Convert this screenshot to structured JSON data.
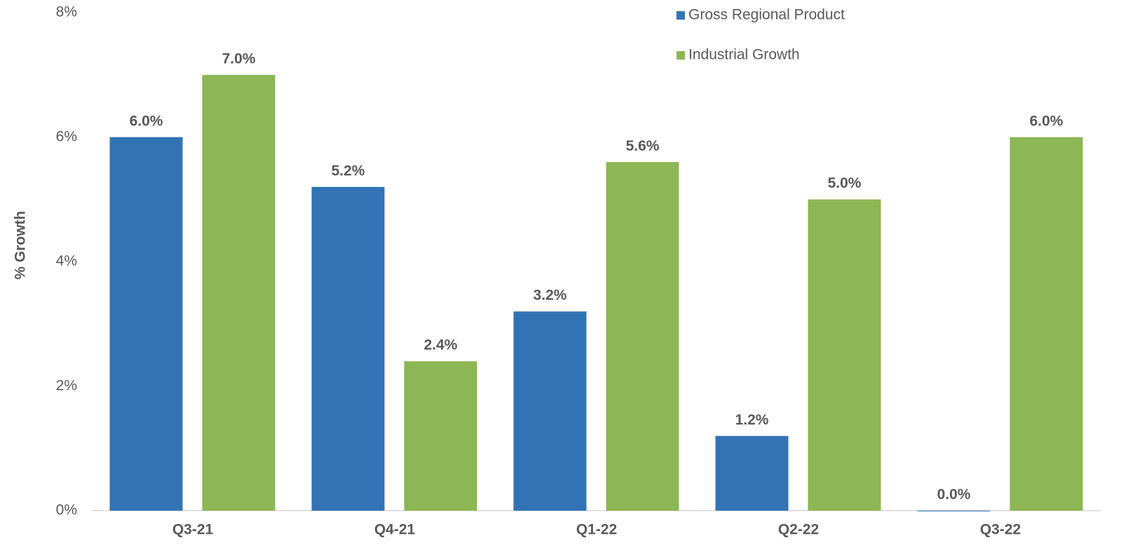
{
  "chart_data": {
    "type": "bar",
    "y_label": "% Growth",
    "categories": [
      "Q3-21",
      "Q4-21",
      "Q1-22",
      "Q2-22",
      "Q3-22"
    ],
    "series": [
      {
        "name": "Gross Regional Product",
        "color": "#3273b5",
        "values": [
          6.0,
          5.2,
          3.2,
          1.2,
          0.0
        ],
        "value_labels": [
          "6.0%",
          "5.2%",
          "3.2%",
          "1.2%",
          "0.0%"
        ]
      },
      {
        "name": "Industrial Growth",
        "color": "#8db654",
        "values": [
          7.0,
          2.4,
          5.6,
          5.0,
          6.0
        ],
        "value_labels": [
          "7.0%",
          "2.4%",
          "5.6%",
          "5.0%",
          "6.0%"
        ]
      }
    ],
    "ylim": [
      0,
      8
    ],
    "yticks": [
      {
        "value": 0,
        "label": "0%"
      },
      {
        "value": 2,
        "label": "2%"
      },
      {
        "value": 4,
        "label": "4%"
      },
      {
        "value": 6,
        "label": "6%"
      },
      {
        "value": 8,
        "label": "8%"
      }
    ],
    "grid": false,
    "legend": "top-right"
  }
}
